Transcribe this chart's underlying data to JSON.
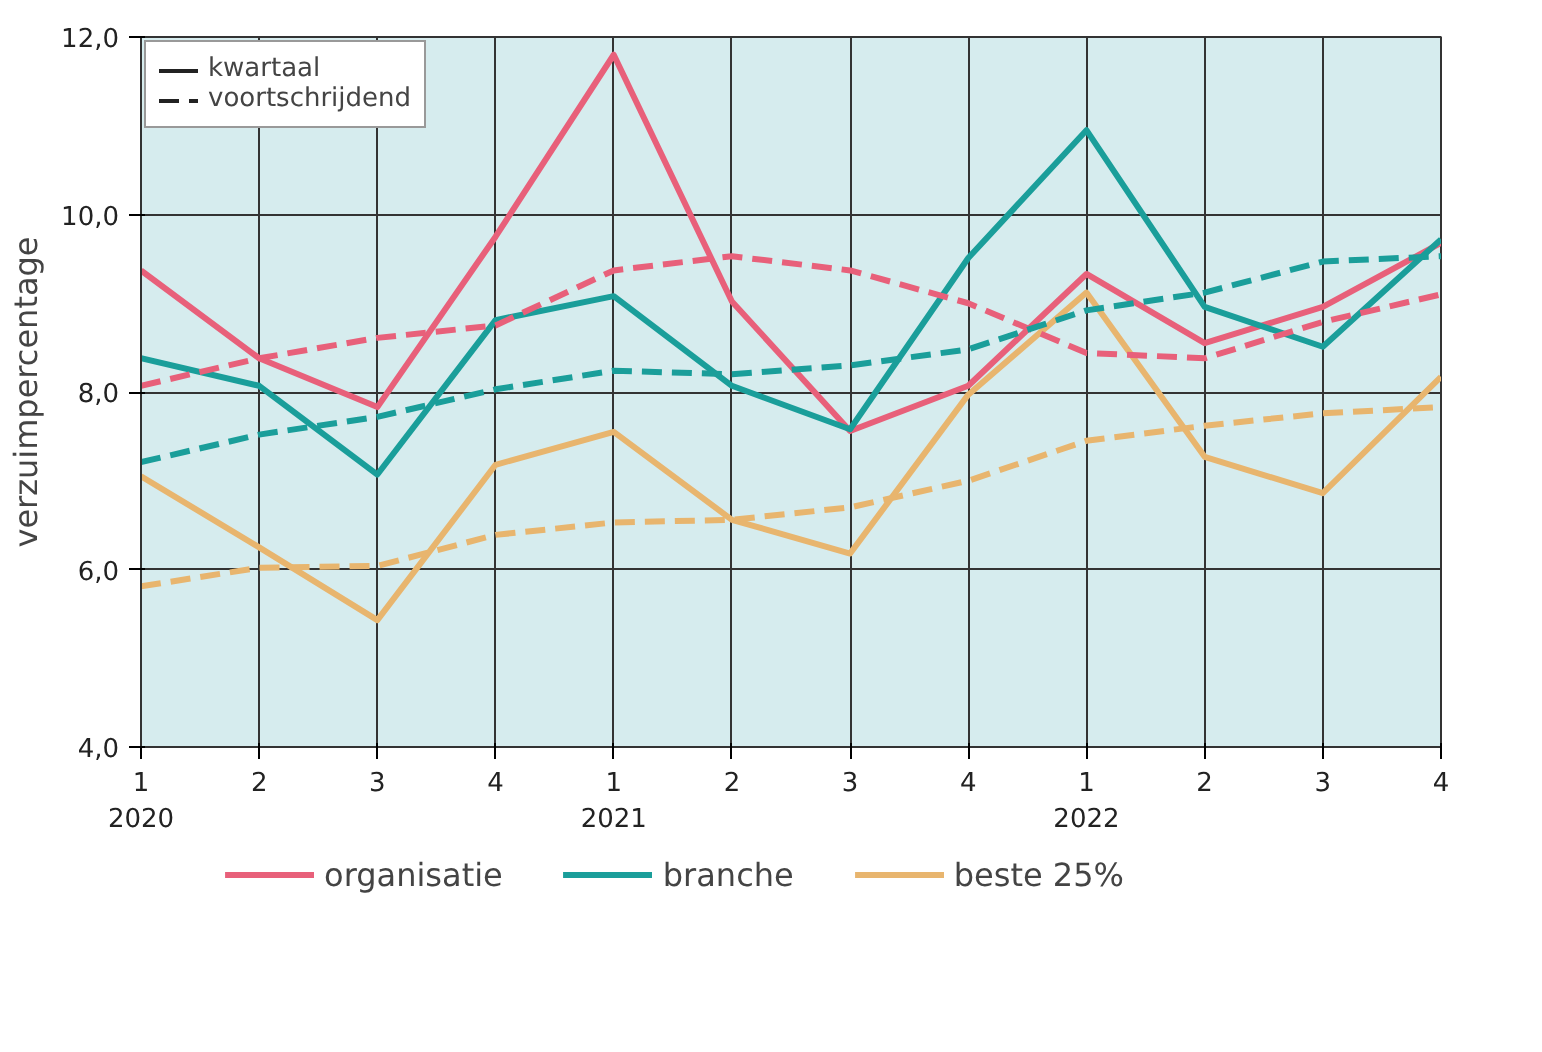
{
  "chart_data": {
    "type": "line",
    "ylabel": "verzuimpercentage",
    "categories": [
      "1\n2020",
      "2",
      "3",
      "4",
      "1\n2021",
      "2",
      "3",
      "4",
      "1\n2022",
      "2",
      "3",
      "4"
    ],
    "ylim": [
      4,
      12
    ],
    "yticks": [
      {
        "value": 4,
        "label": "4,0"
      },
      {
        "value": 6,
        "label": "6,0"
      },
      {
        "value": 8,
        "label": "8,0"
      },
      {
        "value": 10,
        "label": "10,0"
      },
      {
        "value": 12,
        "label": "12,0"
      }
    ],
    "grid": true,
    "legend": "bottom",
    "annotations": [
      "kwartaal",
      "voortschrijdend"
    ],
    "series": [
      {
        "name": "organisatie",
        "color": "#e8607a",
        "line_style": "solid",
        "values": [
          9.37,
          8.38,
          7.83,
          9.75,
          11.8,
          9.02,
          7.56,
          8.07,
          9.33,
          8.55,
          8.96,
          9.68
        ]
      },
      {
        "name": "branche",
        "color": "#1a9e9a",
        "line_style": "solid",
        "values": [
          8.38,
          8.07,
          7.07,
          8.81,
          9.08,
          8.07,
          7.58,
          9.51,
          10.95,
          8.96,
          8.51,
          9.72
        ]
      },
      {
        "name": "beste 25%",
        "color": "#e8b56e",
        "line_style": "solid",
        "values": [
          7.05,
          6.25,
          5.43,
          7.18,
          7.55,
          6.56,
          6.18,
          7.97,
          9.12,
          7.27,
          6.86,
          8.17
        ]
      },
      {
        "color": "#e8607a",
        "line_style": "dashed",
        "values": [
          8.07,
          8.38,
          8.61,
          8.75,
          9.37,
          9.53,
          9.37,
          9.0,
          8.44,
          8.38,
          8.79,
          9.1
        ]
      },
      {
        "color": "#1a9e9a",
        "line_style": "dashed",
        "values": [
          7.21,
          7.52,
          7.72,
          8.03,
          8.24,
          8.2,
          8.3,
          8.48,
          8.92,
          9.12,
          9.47,
          9.53
        ]
      },
      {
        "color": "#e8b56e",
        "line_style": "dashed",
        "values": [
          5.81,
          6.02,
          6.04,
          6.39,
          6.53,
          6.56,
          6.7,
          7.0,
          7.45,
          7.62,
          7.76,
          7.83
        ]
      }
    ]
  }
}
